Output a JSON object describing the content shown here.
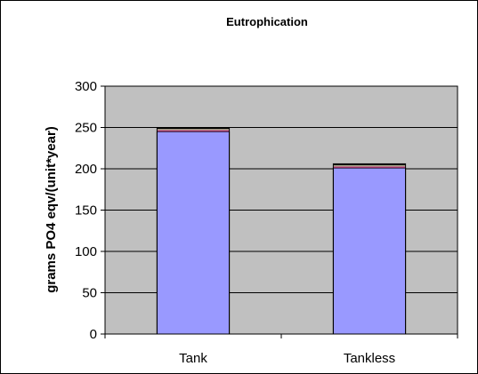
{
  "chart_data": {
    "type": "bar",
    "stacked": true,
    "title": "Eutrophication",
    "xlabel": "",
    "ylabel": "grams PO4 eqv/(unit*year)",
    "categories": [
      "Tank",
      "Tankless"
    ],
    "series": [
      {
        "values": [
          245,
          201
        ],
        "color": "#9999ff"
      },
      {
        "values": [
          2,
          2
        ],
        "color": "#993366"
      },
      {
        "values": [
          1,
          1
        ],
        "color": "#ffffcc"
      },
      {
        "values": [
          2,
          2
        ],
        "color": "#000000"
      }
    ],
    "ylim": [
      0,
      300
    ],
    "yticks": [
      0,
      50,
      100,
      150,
      200,
      250,
      300
    ],
    "grid": true,
    "legend": "none",
    "plot_background": "#c0c0c0"
  }
}
